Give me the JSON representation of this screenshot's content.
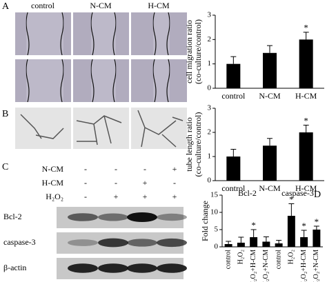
{
  "figure": {
    "panel_labels": [
      "A",
      "B",
      "C",
      "D"
    ],
    "column_headers": [
      "control",
      "N-CM",
      "H-CM"
    ],
    "conditions": [
      {
        "name": "N-CM",
        "signs": [
          "-",
          "-",
          "-",
          "+"
        ]
      },
      {
        "name": "H-CM",
        "signs": [
          "-",
          "-",
          "+",
          "-"
        ]
      },
      {
        "name": "H₂O₂",
        "signs": [
          "-",
          "+",
          "+",
          "+"
        ]
      }
    ],
    "blot_labels": [
      "Bcl-2",
      "caspase-3",
      "β-actin"
    ]
  },
  "chart_data": [
    {
      "type": "bar",
      "ylabel": [
        "cell migration ratio",
        "(co-culture/control)"
      ],
      "categories": [
        "control",
        "N-CM",
        "H-CM"
      ],
      "values": [
        1.0,
        1.45,
        2.0
      ],
      "errors": [
        0.3,
        0.3,
        0.3
      ],
      "significance": [
        null,
        null,
        "*"
      ],
      "color": "#000000",
      "ylim": [
        0,
        3
      ],
      "yticks": [
        0,
        1,
        2,
        3
      ]
    },
    {
      "type": "bar",
      "ylabel": [
        "tube length ratio",
        "(co-culture/control)"
      ],
      "categories": [
        "control",
        "N-CM",
        "H-CM"
      ],
      "values": [
        1.0,
        1.45,
        2.0
      ],
      "errors": [
        0.3,
        0.3,
        0.3
      ],
      "significance": [
        null,
        null,
        "*"
      ],
      "color": "#000000",
      "ylim": [
        0,
        3
      ],
      "yticks": [
        0,
        1,
        2,
        3
      ]
    },
    {
      "type": "bar",
      "ylabel": [
        "Fold change"
      ],
      "groups": [
        "Bcl-2",
        "caspase-3"
      ],
      "categories": [
        "control",
        "H₂O₂",
        "H₂O₂+H-CM",
        "H₂O₂+N-CM",
        "control",
        "H₂O₂",
        "H₂O₂+H-CM",
        "H₂O₂+N-CM"
      ],
      "values": [
        0.8,
        1.2,
        2.8,
        1.5,
        1.0,
        9.0,
        2.8,
        5.0
      ],
      "errors": [
        0.8,
        1.6,
        2.2,
        1.4,
        0.9,
        3.5,
        2.0,
        1.0
      ],
      "significance": [
        null,
        null,
        "*",
        null,
        null,
        "*",
        "*",
        "*"
      ],
      "color": "#000000",
      "ylim": [
        0,
        15
      ],
      "yticks": [
        0,
        5,
        10,
        15
      ]
    }
  ]
}
